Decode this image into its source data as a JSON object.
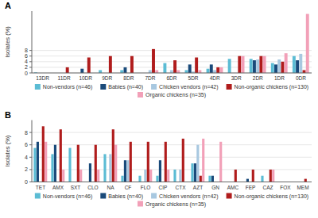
{
  "chart_data": [
    {
      "type": "bar",
      "title": "A",
      "y_label": "Isolates (%)",
      "categories": [
        "13DR",
        "11DR",
        "10DR",
        "9DR",
        "8DR",
        "7DR",
        "6DR",
        "5DR",
        "4DR",
        "3DR",
        "2DR",
        "1DR",
        "0DR"
      ],
      "series": [
        {
          "name": "Non-vendors (n=46)",
          "color": "#5BBCD4",
          "values": [
            0.2,
            0,
            0,
            1.0,
            1.0,
            0,
            3.5,
            1.0,
            1.5,
            5.0,
            5.0,
            3.5,
            6.0
          ]
        },
        {
          "name": "Babies (n=40)",
          "color": "#1A4A7A",
          "values": [
            0,
            0,
            1.5,
            0,
            2.0,
            0,
            0,
            3.0,
            3.0,
            0,
            4.5,
            3.0,
            4.5
          ]
        },
        {
          "name": "Chicken vendors (n=42)",
          "color": "#A8C8E0",
          "values": [
            0,
            0,
            0,
            0,
            0,
            1.0,
            1.0,
            0.5,
            1.0,
            0,
            4.8,
            4.8,
            6.8
          ]
        },
        {
          "name": "Non-organic chickens (n=130)",
          "color": "#B01C1C",
          "values": [
            0,
            2.0,
            5.5,
            6.0,
            6.0,
            8.5,
            4.5,
            5.5,
            2.0,
            6.0,
            6.0,
            4.0,
            1.0
          ]
        },
        {
          "name": "Organic chickens (n=35)",
          "color": "#F2A0B8",
          "values": [
            0,
            0,
            0,
            0,
            0,
            1.0,
            1.0,
            1.0,
            2.0,
            6.0,
            6.0,
            7.0,
            21.0
          ]
        }
      ],
      "ylim": [
        0,
        22
      ],
      "yticks": [
        0,
        2,
        4,
        6,
        8
      ],
      "grid": true,
      "legend": "bottom"
    },
    {
      "type": "bar",
      "title": "B",
      "y_label": "Isolates (%)",
      "categories": [
        "TET",
        "AMX",
        "SXT",
        "CLO",
        "NA",
        "CF",
        "FLO",
        "CIP",
        "CTX",
        "AZT",
        "GN",
        "AMC",
        "FEP",
        "CAZ",
        "FOX",
        "MEM"
      ],
      "series": [
        {
          "name": "Non-vendors (n=46)",
          "color": "#5BBCD4",
          "values": [
            5.5,
            4.5,
            5.5,
            0,
            4.5,
            1.0,
            1.0,
            1.0,
            2.0,
            3.0,
            1.0,
            0,
            0,
            1.0,
            0,
            0
          ]
        },
        {
          "name": "Babies (n=40)",
          "color": "#1A4A7A",
          "values": [
            6.5,
            6.0,
            0,
            3.0,
            0,
            3.5,
            0,
            3.5,
            0,
            3.0,
            1.0,
            0,
            0.5,
            0,
            0,
            0
          ]
        },
        {
          "name": "Chicken vendors (n=42)",
          "color": "#A8C8E0",
          "values": [
            0,
            0,
            0,
            0,
            4.5,
            3.5,
            2.0,
            0,
            2.0,
            6.0,
            0,
            0,
            0,
            0,
            0,
            0
          ]
        },
        {
          "name": "Non-organic chickens (n=130)",
          "color": "#B01C1C",
          "values": [
            9.0,
            8.5,
            6.0,
            6.0,
            8.5,
            6.5,
            6.5,
            6.5,
            7.0,
            1.0,
            0,
            2.0,
            2.0,
            2.0,
            0,
            0.5
          ]
        },
        {
          "name": "Organic chickens (n=35)",
          "color": "#F2A0B8",
          "values": [
            6.5,
            2.0,
            2.0,
            2.0,
            6.0,
            0,
            2.0,
            2.0,
            0,
            7.0,
            6.5,
            0,
            0,
            2.0,
            0,
            0
          ]
        }
      ],
      "ylim": [
        0,
        10
      ],
      "yticks": [
        0,
        2,
        4,
        6,
        8
      ],
      "grid": true,
      "legend": "bottom"
    }
  ]
}
